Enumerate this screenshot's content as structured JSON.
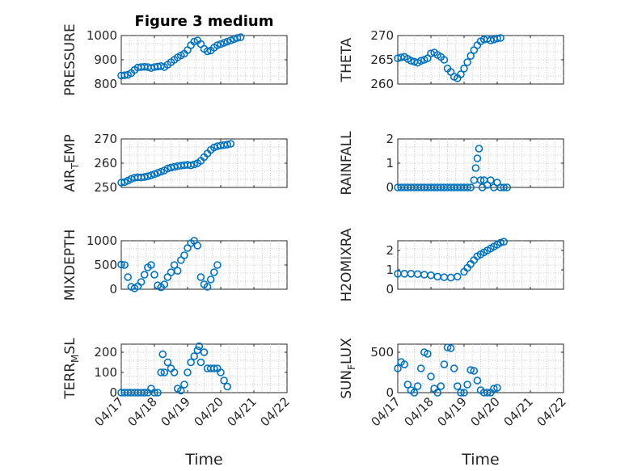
{
  "chart_data": [
    {
      "type": "scatter",
      "title": "Figure 3 medium",
      "ylabel": "PRESSURE",
      "ylabel_main": "PRESSURE",
      "ylabel_sub": "",
      "ylabel_tail": "",
      "xlim": [
        0,
        5
      ],
      "ylim": [
        800,
        1000
      ],
      "yticks": [
        800,
        900,
        1000
      ],
      "show_xticklabels": false,
      "marker": "circle",
      "color": "#0072bd",
      "grid": true,
      "points": [
        [
          0,
          835
        ],
        [
          0.1,
          836
        ],
        [
          0.2,
          838
        ],
        [
          0.3,
          845
        ],
        [
          0.4,
          858
        ],
        [
          0.5,
          868
        ],
        [
          0.6,
          870
        ],
        [
          0.7,
          871
        ],
        [
          0.8,
          870
        ],
        [
          0.9,
          866
        ],
        [
          1.0,
          870
        ],
        [
          1.1,
          872
        ],
        [
          1.2,
          874
        ],
        [
          1.3,
          870
        ],
        [
          1.4,
          880
        ],
        [
          1.5,
          890
        ],
        [
          1.6,
          900
        ],
        [
          1.7,
          910
        ],
        [
          1.8,
          918
        ],
        [
          1.9,
          925
        ],
        [
          2.0,
          940
        ],
        [
          2.1,
          960
        ],
        [
          2.2,
          975
        ],
        [
          2.3,
          980
        ],
        [
          2.4,
          965
        ],
        [
          2.5,
          945
        ],
        [
          2.6,
          935
        ],
        [
          2.7,
          938
        ],
        [
          2.8,
          950
        ],
        [
          2.9,
          960
        ],
        [
          3.0,
          965
        ],
        [
          3.1,
          970
        ],
        [
          3.2,
          975
        ],
        [
          3.3,
          980
        ],
        [
          3.4,
          985
        ],
        [
          3.5,
          990
        ],
        [
          3.6,
          993
        ]
      ]
    },
    {
      "type": "scatter",
      "title": "",
      "ylabel": "THETA",
      "ylabel_main": "THETA",
      "ylabel_sub": "",
      "ylabel_tail": "",
      "xlim": [
        0,
        5
      ],
      "ylim": [
        260,
        270
      ],
      "yticks": [
        260,
        265,
        270
      ],
      "show_xticklabels": false,
      "marker": "circle",
      "color": "#0072bd",
      "grid": true,
      "points": [
        [
          0,
          265.3
        ],
        [
          0.1,
          265.5
        ],
        [
          0.2,
          265.6
        ],
        [
          0.3,
          265.2
        ],
        [
          0.4,
          264.8
        ],
        [
          0.5,
          264.6
        ],
        [
          0.6,
          264.4
        ],
        [
          0.7,
          264.8
        ],
        [
          0.8,
          265.0
        ],
        [
          0.9,
          265.3
        ],
        [
          1.0,
          266.3
        ],
        [
          1.1,
          266.5
        ],
        [
          1.2,
          266.0
        ],
        [
          1.3,
          265.6
        ],
        [
          1.4,
          265.0
        ],
        [
          1.5,
          263.2
        ],
        [
          1.6,
          262.5
        ],
        [
          1.7,
          261.5
        ],
        [
          1.8,
          261.2
        ],
        [
          1.9,
          262.0
        ],
        [
          2.0,
          263.2
        ],
        [
          2.1,
          264.5
        ],
        [
          2.2,
          265.8
        ],
        [
          2.3,
          267.0
        ],
        [
          2.4,
          268.0
        ],
        [
          2.5,
          268.8
        ],
        [
          2.6,
          269.2
        ],
        [
          2.7,
          269.3
        ],
        [
          2.8,
          269.0
        ],
        [
          2.9,
          269.2
        ],
        [
          3.0,
          269.4
        ],
        [
          3.1,
          269.5
        ]
      ]
    },
    {
      "type": "scatter",
      "title": "",
      "ylabel": "AIR_TEMP",
      "ylabel_main": "AIR",
      "ylabel_sub": "T",
      "ylabel_tail": "EMP",
      "xlim": [
        0,
        5
      ],
      "ylim": [
        250,
        270
      ],
      "yticks": [
        250,
        260,
        270
      ],
      "show_xticklabels": false,
      "marker": "circle",
      "color": "#0072bd",
      "grid": true,
      "points": [
        [
          0,
          252
        ],
        [
          0.1,
          252.2
        ],
        [
          0.2,
          252.8
        ],
        [
          0.3,
          253.5
        ],
        [
          0.4,
          254
        ],
        [
          0.5,
          254.2
        ],
        [
          0.6,
          254.1
        ],
        [
          0.7,
          254.3
        ],
        [
          0.8,
          254.6
        ],
        [
          0.9,
          255
        ],
        [
          1.0,
          255.5
        ],
        [
          1.1,
          256
        ],
        [
          1.2,
          256.5
        ],
        [
          1.3,
          257
        ],
        [
          1.4,
          257.8
        ],
        [
          1.5,
          258.2
        ],
        [
          1.6,
          258.5
        ],
        [
          1.7,
          258.8
        ],
        [
          1.8,
          259
        ],
        [
          1.9,
          259.2
        ],
        [
          2.0,
          259.3
        ],
        [
          2.1,
          259.1
        ],
        [
          2.2,
          259.5
        ],
        [
          2.3,
          260
        ],
        [
          2.4,
          261
        ],
        [
          2.5,
          262.5
        ],
        [
          2.6,
          264
        ],
        [
          2.7,
          265.5
        ],
        [
          2.8,
          266.5
        ],
        [
          2.9,
          267
        ],
        [
          3.0,
          267.3
        ],
        [
          3.1,
          267.5
        ],
        [
          3.2,
          267.7
        ],
        [
          3.3,
          268
        ]
      ]
    },
    {
      "type": "scatter",
      "title": "",
      "ylabel": "RAINFALL",
      "ylabel_main": "RAINFALL",
      "ylabel_sub": "",
      "ylabel_tail": "",
      "xlim": [
        0,
        5
      ],
      "ylim": [
        0,
        2
      ],
      "yticks": [
        0,
        1,
        2
      ],
      "show_xticklabels": false,
      "marker": "circle",
      "color": "#0072bd",
      "grid": true,
      "points": [
        [
          0,
          0
        ],
        [
          0.1,
          0
        ],
        [
          0.2,
          0
        ],
        [
          0.3,
          0
        ],
        [
          0.4,
          0
        ],
        [
          0.5,
          0
        ],
        [
          0.6,
          0
        ],
        [
          0.7,
          0
        ],
        [
          0.8,
          0
        ],
        [
          0.9,
          0
        ],
        [
          1.0,
          0
        ],
        [
          1.1,
          0
        ],
        [
          1.2,
          0
        ],
        [
          1.3,
          0
        ],
        [
          1.4,
          0
        ],
        [
          1.5,
          0
        ],
        [
          1.6,
          0
        ],
        [
          1.7,
          0
        ],
        [
          1.8,
          0
        ],
        [
          1.9,
          0
        ],
        [
          2.0,
          0
        ],
        [
          2.1,
          0
        ],
        [
          2.2,
          0
        ],
        [
          2.3,
          0.3
        ],
        [
          2.35,
          0.8
        ],
        [
          2.4,
          1.2
        ],
        [
          2.45,
          1.6
        ],
        [
          2.5,
          0.3
        ],
        [
          2.55,
          0
        ],
        [
          2.6,
          0.3
        ],
        [
          2.7,
          0.1
        ],
        [
          2.8,
          0.3
        ],
        [
          2.9,
          0
        ],
        [
          3.0,
          0.2
        ],
        [
          3.1,
          0
        ],
        [
          3.2,
          0
        ],
        [
          3.3,
          0
        ]
      ]
    },
    {
      "type": "scatter",
      "title": "",
      "ylabel": "MIXDEPTH",
      "ylabel_main": "MIXDEPTH",
      "ylabel_sub": "",
      "ylabel_tail": "",
      "xlim": [
        0,
        5
      ],
      "ylim": [
        0,
        1000
      ],
      "yticks": [
        0,
        500,
        1000
      ],
      "show_xticklabels": false,
      "marker": "circle",
      "color": "#0072bd",
      "grid": true,
      "points": [
        [
          0,
          510
        ],
        [
          0.1,
          500
        ],
        [
          0.2,
          250
        ],
        [
          0.3,
          50
        ],
        [
          0.4,
          20
        ],
        [
          0.5,
          60
        ],
        [
          0.6,
          150
        ],
        [
          0.7,
          300
        ],
        [
          0.8,
          450
        ],
        [
          0.9,
          500
        ],
        [
          1.0,
          300
        ],
        [
          1.1,
          80
        ],
        [
          1.2,
          40
        ],
        [
          1.3,
          100
        ],
        [
          1.4,
          250
        ],
        [
          1.5,
          350
        ],
        [
          1.6,
          500
        ],
        [
          1.7,
          380
        ],
        [
          1.8,
          600
        ],
        [
          1.9,
          700
        ],
        [
          2.0,
          850
        ],
        [
          2.1,
          950
        ],
        [
          2.2,
          1000
        ],
        [
          2.3,
          900
        ],
        [
          2.4,
          250
        ],
        [
          2.5,
          100
        ],
        [
          2.6,
          50
        ],
        [
          2.7,
          200
        ],
        [
          2.8,
          350
        ],
        [
          2.9,
          500
        ]
      ]
    },
    {
      "type": "scatter",
      "title": "",
      "ylabel": "H2OMIXRA",
      "ylabel_main": "H2OMIXRA",
      "ylabel_sub": "",
      "ylabel_tail": "",
      "xlim": [
        0,
        5
      ],
      "ylim": [
        0,
        2.5
      ],
      "yticks": [
        0,
        1,
        2
      ],
      "show_xticklabels": false,
      "marker": "circle",
      "color": "#0072bd",
      "grid": true,
      "points": [
        [
          0,
          0.8
        ],
        [
          0.2,
          0.8
        ],
        [
          0.4,
          0.8
        ],
        [
          0.6,
          0.78
        ],
        [
          0.8,
          0.75
        ],
        [
          1.0,
          0.72
        ],
        [
          1.2,
          0.65
        ],
        [
          1.4,
          0.62
        ],
        [
          1.6,
          0.6
        ],
        [
          1.8,
          0.65
        ],
        [
          2.0,
          0.9
        ],
        [
          2.1,
          1.1
        ],
        [
          2.2,
          1.3
        ],
        [
          2.3,
          1.5
        ],
        [
          2.4,
          1.7
        ],
        [
          2.5,
          1.8
        ],
        [
          2.6,
          1.9
        ],
        [
          2.7,
          2.0
        ],
        [
          2.8,
          2.1
        ],
        [
          2.9,
          2.2
        ],
        [
          3.0,
          2.3
        ],
        [
          3.1,
          2.4
        ],
        [
          3.2,
          2.45
        ]
      ]
    },
    {
      "type": "scatter",
      "title": "",
      "ylabel": "TERR_MSL",
      "ylabel_main": "TERR",
      "ylabel_sub": "M",
      "ylabel_tail": "SL",
      "xlim": [
        0,
        5
      ],
      "ylim": [
        0,
        240
      ],
      "yticks": [
        0,
        100,
        200
      ],
      "xtick_values": [
        0,
        1,
        2,
        3,
        4,
        5
      ],
      "xticklabels": [
        "04/17",
        "04/18",
        "04/19",
        "04/20",
        "04/21",
        "04/22"
      ],
      "xlabel": "Time",
      "show_xticklabels": true,
      "marker": "circle",
      "color": "#0072bd",
      "grid": true,
      "points": [
        [
          0,
          0
        ],
        [
          0.1,
          0
        ],
        [
          0.2,
          0
        ],
        [
          0.3,
          0
        ],
        [
          0.4,
          0
        ],
        [
          0.5,
          0
        ],
        [
          0.6,
          0
        ],
        [
          0.7,
          0
        ],
        [
          0.8,
          0
        ],
        [
          0.9,
          20
        ],
        [
          1.0,
          0
        ],
        [
          1.1,
          0
        ],
        [
          1.2,
          100
        ],
        [
          1.25,
          190
        ],
        [
          1.3,
          100
        ],
        [
          1.4,
          150
        ],
        [
          1.5,
          120
        ],
        [
          1.6,
          100
        ],
        [
          1.7,
          20
        ],
        [
          1.8,
          10
        ],
        [
          1.9,
          40
        ],
        [
          2.0,
          100
        ],
        [
          2.1,
          150
        ],
        [
          2.2,
          180
        ],
        [
          2.3,
          210
        ],
        [
          2.35,
          230
        ],
        [
          2.4,
          150
        ],
        [
          2.5,
          200
        ],
        [
          2.6,
          120
        ],
        [
          2.7,
          120
        ],
        [
          2.8,
          120
        ],
        [
          2.9,
          120
        ],
        [
          3.0,
          100
        ],
        [
          3.1,
          60
        ],
        [
          3.2,
          30
        ]
      ]
    },
    {
      "type": "scatter",
      "title": "",
      "ylabel": "SUN_FLUX",
      "ylabel_main": "SUN",
      "ylabel_sub": "F",
      "ylabel_tail": "LUX",
      "xlim": [
        0,
        5
      ],
      "ylim": [
        0,
        600
      ],
      "yticks": [
        0,
        500
      ],
      "xtick_values": [
        0,
        1,
        2,
        3,
        4,
        5
      ],
      "xticklabels": [
        "04/17",
        "04/18",
        "04/19",
        "04/20",
        "04/21",
        "04/22"
      ],
      "xlabel": "Time",
      "show_xticklabels": true,
      "marker": "circle",
      "color": "#0072bd",
      "grid": true,
      "points": [
        [
          0,
          300
        ],
        [
          0.1,
          380
        ],
        [
          0.2,
          350
        ],
        [
          0.3,
          100
        ],
        [
          0.4,
          30
        ],
        [
          0.5,
          0
        ],
        [
          0.6,
          80
        ],
        [
          0.7,
          300
        ],
        [
          0.8,
          500
        ],
        [
          0.9,
          480
        ],
        [
          1.0,
          200
        ],
        [
          1.1,
          50
        ],
        [
          1.2,
          0
        ],
        [
          1.3,
          80
        ],
        [
          1.4,
          350
        ],
        [
          1.5,
          560
        ],
        [
          1.6,
          550
        ],
        [
          1.7,
          300
        ],
        [
          1.8,
          80
        ],
        [
          1.9,
          0
        ],
        [
          2.0,
          0
        ],
        [
          2.1,
          100
        ],
        [
          2.2,
          280
        ],
        [
          2.3,
          270
        ],
        [
          2.4,
          150
        ],
        [
          2.5,
          30
        ],
        [
          2.6,
          0
        ],
        [
          2.7,
          0
        ],
        [
          2.8,
          0
        ],
        [
          2.9,
          50
        ],
        [
          3.0,
          60
        ]
      ]
    }
  ]
}
